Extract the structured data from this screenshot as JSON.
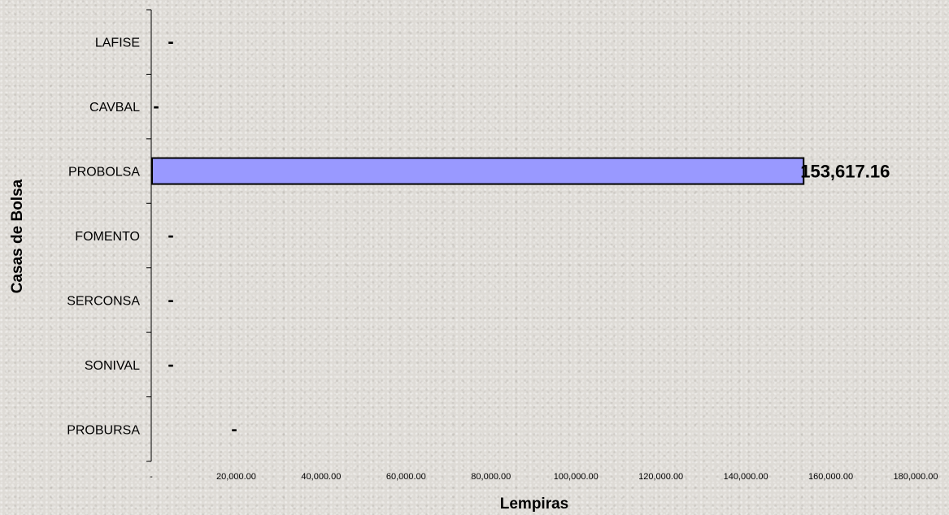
{
  "chart_data": {
    "type": "bar",
    "orientation": "horizontal",
    "title": "",
    "xlabel": "Lempiras",
    "ylabel": "Casas de Bolsa",
    "categories": [
      "PROBURSA",
      "SONIVAL",
      "SERCONSA",
      "FOMENTO",
      "PROBOLSA",
      "CAVBAL",
      "LAFISE"
    ],
    "values": [
      0,
      0,
      0,
      0,
      153617.16,
      0,
      0
    ],
    "data_labels": [
      "-",
      "-",
      "-",
      "-",
      "153,617.16",
      "-",
      "-"
    ],
    "xlim": [
      0,
      180000
    ],
    "x_ticks": [
      0,
      20000,
      40000,
      60000,
      80000,
      100000,
      120000,
      140000,
      160000,
      180000
    ],
    "x_tick_labels": [
      "-",
      "20,000.00",
      "40,000.00",
      "60,000.00",
      "80,000.00",
      "100,000.00",
      "120,000.00",
      "140,000.00",
      "160,000.00",
      "180,000.00"
    ],
    "bar_color": "#9999ff",
    "grid": false,
    "legend": "none"
  }
}
